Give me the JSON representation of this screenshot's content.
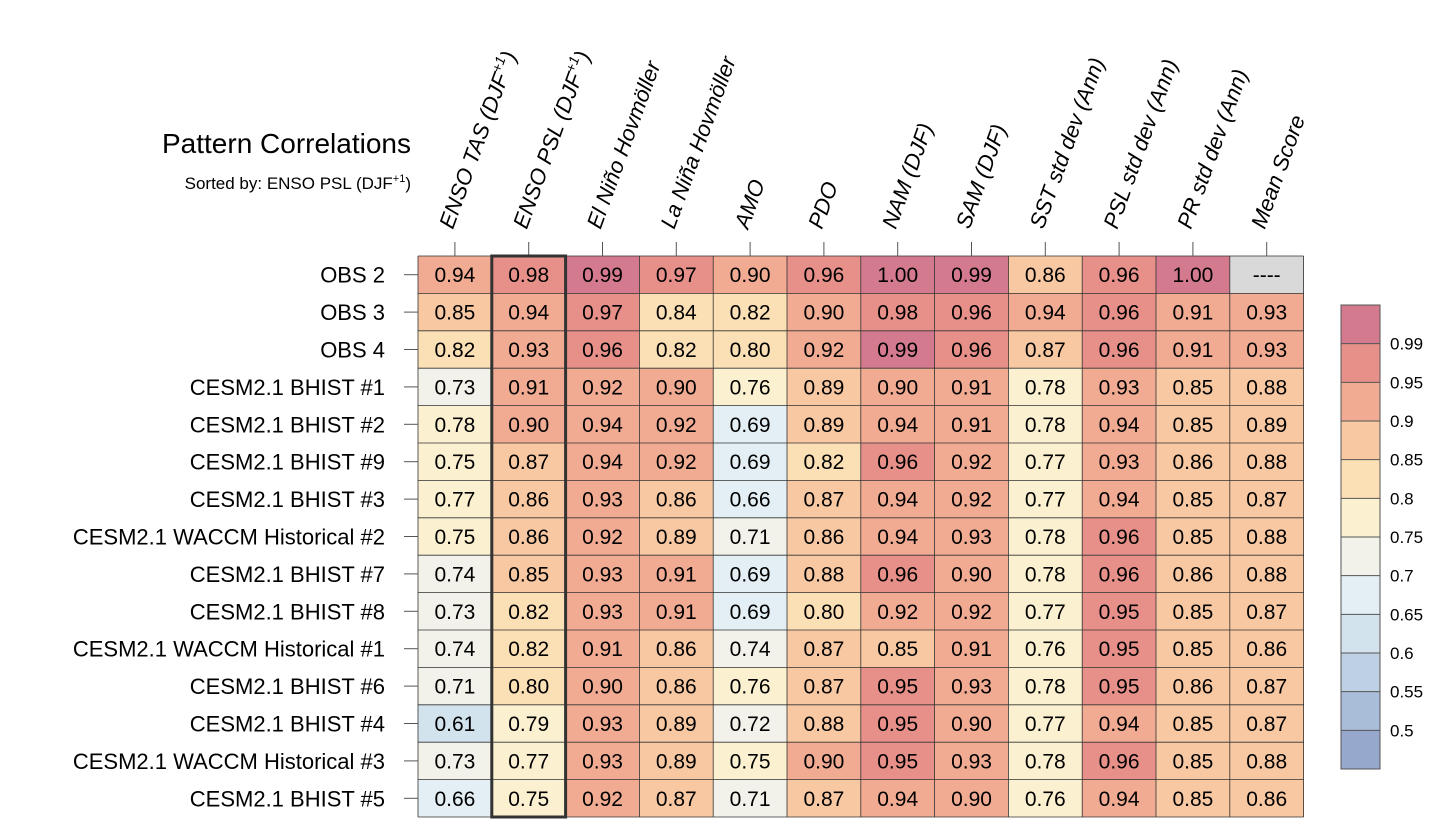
{
  "chart_data": {
    "type": "heatmap",
    "title": "Pattern Correlations",
    "subtitle": "Sorted by: ENSO PSL (DJF",
    "subtitle_sup": "+1",
    "subtitle_end": ")",
    "columns": [
      {
        "label": "ENSO TAS (DJF",
        "sup": "+1",
        "end": ")"
      },
      {
        "label": "ENSO PSL (DJF",
        "sup": "+1",
        "end": ")"
      },
      {
        "label": "El Niño Hovmöller"
      },
      {
        "label": "La Niña Hovmöller"
      },
      {
        "label": "AMO"
      },
      {
        "label": "PDO"
      },
      {
        "label": "NAM (DJF)"
      },
      {
        "label": "SAM (DJF)"
      },
      {
        "label": "SST std dev (Ann)"
      },
      {
        "label": "PSL std dev (Ann)"
      },
      {
        "label": "PR std dev (Ann)"
      },
      {
        "label": "Mean Score"
      }
    ],
    "sorted_column_index": 1,
    "rows": [
      {
        "label": "OBS 2",
        "values": [
          "0.94",
          "0.98",
          "0.99",
          "0.97",
          "0.90",
          "0.96",
          "1.00",
          "0.99",
          "0.86",
          "0.96",
          "1.00",
          "----"
        ]
      },
      {
        "label": "OBS 3",
        "values": [
          "0.85",
          "0.94",
          "0.97",
          "0.84",
          "0.82",
          "0.90",
          "0.98",
          "0.96",
          "0.94",
          "0.96",
          "0.91",
          "0.93"
        ]
      },
      {
        "label": "OBS 4",
        "values": [
          "0.82",
          "0.93",
          "0.96",
          "0.82",
          "0.80",
          "0.92",
          "0.99",
          "0.96",
          "0.87",
          "0.96",
          "0.91",
          "0.93"
        ]
      },
      {
        "label": "CESM2.1 BHIST #1",
        "values": [
          "0.73",
          "0.91",
          "0.92",
          "0.90",
          "0.76",
          "0.89",
          "0.90",
          "0.91",
          "0.78",
          "0.93",
          "0.85",
          "0.88"
        ]
      },
      {
        "label": "CESM2.1 BHIST #2",
        "values": [
          "0.78",
          "0.90",
          "0.94",
          "0.92",
          "0.69",
          "0.89",
          "0.94",
          "0.91",
          "0.78",
          "0.94",
          "0.85",
          "0.89"
        ]
      },
      {
        "label": "CESM2.1 BHIST #9",
        "values": [
          "0.75",
          "0.87",
          "0.94",
          "0.92",
          "0.69",
          "0.82",
          "0.96",
          "0.92",
          "0.77",
          "0.93",
          "0.86",
          "0.88"
        ]
      },
      {
        "label": "CESM2.1 BHIST #3",
        "values": [
          "0.77",
          "0.86",
          "0.93",
          "0.86",
          "0.66",
          "0.87",
          "0.94",
          "0.92",
          "0.77",
          "0.94",
          "0.85",
          "0.87"
        ]
      },
      {
        "label": "CESM2.1 WACCM Historical #2",
        "values": [
          "0.75",
          "0.86",
          "0.92",
          "0.89",
          "0.71",
          "0.86",
          "0.94",
          "0.93",
          "0.78",
          "0.96",
          "0.85",
          "0.88"
        ]
      },
      {
        "label": "CESM2.1 BHIST #7",
        "values": [
          "0.74",
          "0.85",
          "0.93",
          "0.91",
          "0.69",
          "0.88",
          "0.96",
          "0.90",
          "0.78",
          "0.96",
          "0.86",
          "0.88"
        ]
      },
      {
        "label": "CESM2.1 BHIST #8",
        "values": [
          "0.73",
          "0.82",
          "0.93",
          "0.91",
          "0.69",
          "0.80",
          "0.92",
          "0.92",
          "0.77",
          "0.95",
          "0.85",
          "0.87"
        ]
      },
      {
        "label": "CESM2.1 WACCM Historical #1",
        "values": [
          "0.74",
          "0.82",
          "0.91",
          "0.86",
          "0.74",
          "0.87",
          "0.85",
          "0.91",
          "0.76",
          "0.95",
          "0.85",
          "0.86"
        ]
      },
      {
        "label": "CESM2.1 BHIST #6",
        "values": [
          "0.71",
          "0.80",
          "0.90",
          "0.86",
          "0.76",
          "0.87",
          "0.95",
          "0.93",
          "0.78",
          "0.95",
          "0.86",
          "0.87"
        ]
      },
      {
        "label": "CESM2.1 BHIST #4",
        "values": [
          "0.61",
          "0.79",
          "0.93",
          "0.89",
          "0.72",
          "0.88",
          "0.95",
          "0.90",
          "0.77",
          "0.94",
          "0.85",
          "0.87"
        ]
      },
      {
        "label": "CESM2.1 WACCM Historical #3",
        "values": [
          "0.73",
          "0.77",
          "0.93",
          "0.89",
          "0.75",
          "0.90",
          "0.95",
          "0.93",
          "0.78",
          "0.96",
          "0.85",
          "0.88"
        ]
      },
      {
        "label": "CESM2.1 BHIST #5",
        "values": [
          "0.66",
          "0.75",
          "0.92",
          "0.87",
          "0.71",
          "0.87",
          "0.94",
          "0.90",
          "0.76",
          "0.94",
          "0.85",
          "0.86"
        ]
      }
    ],
    "missing_color": "#d9d9d9",
    "colorbar": {
      "thresholds": [
        0.5,
        0.55,
        0.6,
        0.65,
        0.7,
        0.75,
        0.8,
        0.85,
        0.9,
        0.95,
        0.99
      ],
      "labels": [
        "0.5",
        "0.55",
        "0.6",
        "0.65",
        "0.7",
        "0.75",
        "0.8",
        "0.85",
        "0.9",
        "0.95",
        "0.99"
      ],
      "colors": [
        "#97a8cd",
        "#a9bcd8",
        "#bed0e3",
        "#d2e3ee",
        "#e3eff4",
        "#f2f2ea",
        "#fbf0d0",
        "#fbdfb5",
        "#f8c8a2",
        "#f1ab92",
        "#e79089",
        "#d47a8f"
      ]
    }
  }
}
